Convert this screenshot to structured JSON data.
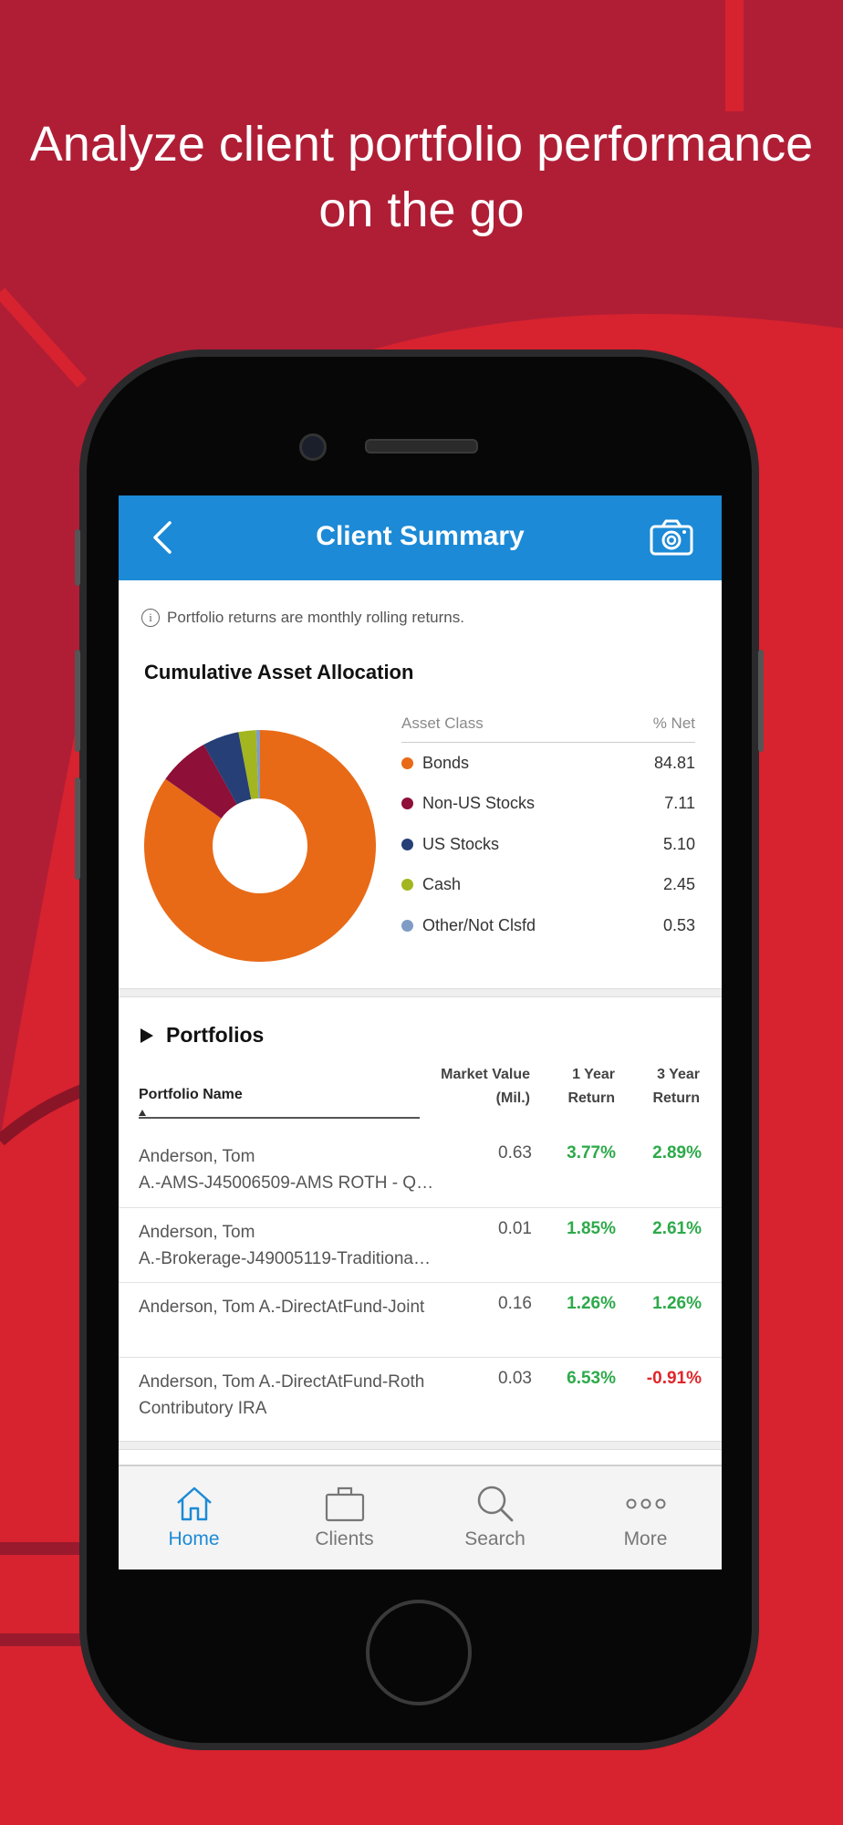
{
  "headline": {
    "line1": "Analyze client portfolio performance",
    "line2": "on the go"
  },
  "colors": {
    "background": "#b01e36",
    "accent_bright": "#d7222f",
    "navbar": "#1c8ad6",
    "positive": "#2daa4a",
    "negative": "#e0262b"
  },
  "app": {
    "navbar": {
      "title": "Client Summary",
      "back_icon": "chevron-left-icon",
      "action_icon": "camera-icon"
    },
    "info_note": "Portfolio returns are monthly rolling returns.",
    "allocation": {
      "title": "Cumulative Asset Allocation",
      "legend_header": {
        "asset_class": "Asset Class",
        "pct_net": "% Net"
      }
    },
    "portfolios": {
      "title": "Portfolios",
      "columns": {
        "name": "Portfolio Name",
        "market_value_line1": "Market Value",
        "market_value_line2": "(Mil.)",
        "one_year_line1": "1 Year",
        "one_year_line2": "Return",
        "three_year_line1": "3 Year",
        "three_year_line2": "Return"
      },
      "rows": [
        {
          "name_line1": "Anderson, Tom",
          "name_line2": "A.-AMS-J45006509-AMS ROTH - Q…",
          "market_value": "0.63",
          "one_year": "3.77%",
          "three_year": "2.89%",
          "one_year_sign": "pos",
          "three_year_sign": "pos"
        },
        {
          "name_line1": "Anderson, Tom",
          "name_line2": "A.-Brokerage-J49005119-Traditiona…",
          "market_value": "0.01",
          "one_year": "1.85%",
          "three_year": "2.61%",
          "one_year_sign": "pos",
          "three_year_sign": "pos"
        },
        {
          "name_line1": "Anderson, Tom A.-DirectAtFund-Joint",
          "name_line2": "",
          "market_value": "0.16",
          "one_year": "1.26%",
          "three_year": "1.26%",
          "one_year_sign": "pos",
          "three_year_sign": "pos"
        },
        {
          "name_line1": "Anderson, Tom A.-DirectAtFund-Roth",
          "name_line2": "Contributory IRA",
          "market_value": "0.03",
          "one_year": "6.53%",
          "three_year": "-0.91%",
          "one_year_sign": "pos",
          "three_year_sign": "neg"
        }
      ]
    },
    "tabbar": [
      {
        "label": "Home",
        "icon": "home-icon",
        "active": true
      },
      {
        "label": "Clients",
        "icon": "briefcase-icon",
        "active": false
      },
      {
        "label": "Search",
        "icon": "search-icon",
        "active": false
      },
      {
        "label": "More",
        "icon": "more-dots-icon",
        "active": false
      }
    ]
  },
  "chart_data": {
    "type": "pie",
    "categories": [
      "Bonds",
      "Non-US Stocks",
      "US Stocks",
      "Cash",
      "Other/Not Clsfd"
    ],
    "values": [
      84.81,
      7.11,
      5.1,
      2.45,
      0.53
    ],
    "labels": [
      "84.81",
      "7.11",
      "5.10",
      "2.45",
      "0.53"
    ],
    "colors": [
      "#e86a17",
      "#8e0f37",
      "#263f77",
      "#a3b51f",
      "#7f9cc6"
    ],
    "donut": true
  }
}
